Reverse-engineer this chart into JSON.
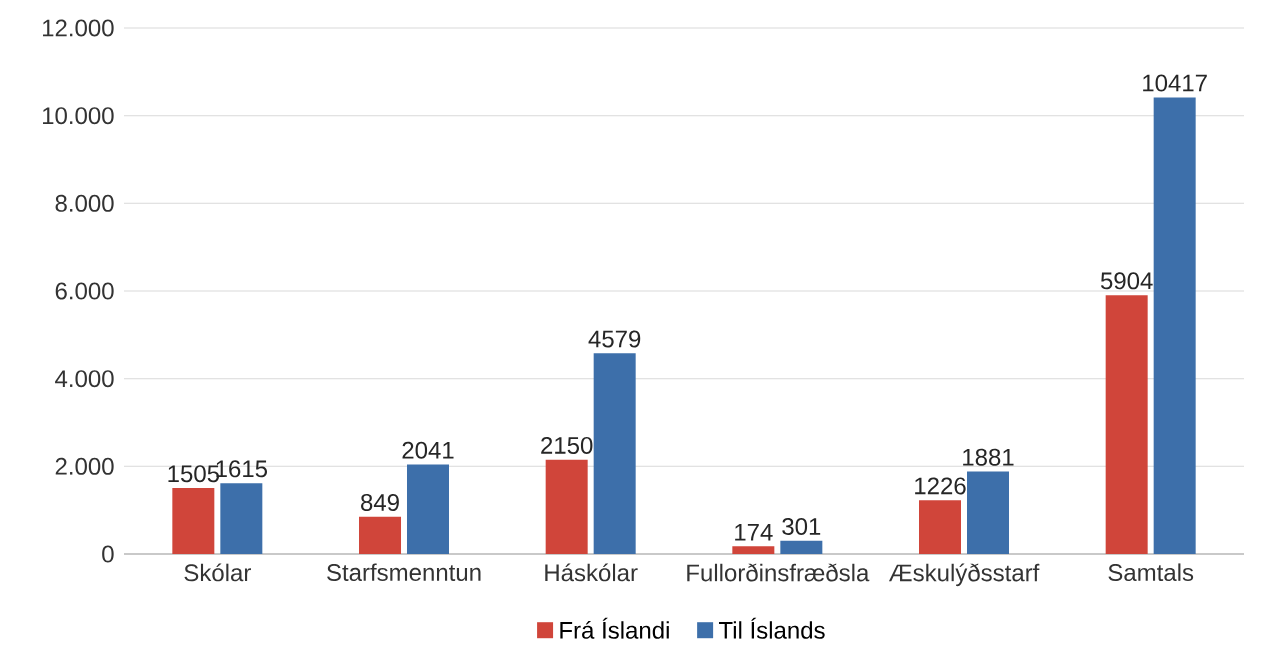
{
  "chart_data": {
    "type": "bar",
    "categories": [
      "Skólar",
      "Starfsmenntun",
      "Háskólar",
      "Fullorðinsfræðsla",
      "Æskulýðsstarf",
      "Samtals"
    ],
    "series": [
      {
        "name": "Frá Íslandi",
        "color": "#d0453a",
        "values": [
          1505,
          849,
          2150,
          174,
          1226,
          5904
        ]
      },
      {
        "name": "Til Íslands",
        "color": "#3d6faa",
        "values": [
          1615,
          2041,
          4579,
          301,
          1881,
          10417
        ]
      }
    ],
    "ylim": [
      0,
      12000
    ],
    "yticks": [
      0,
      {
        "value": 2000,
        "label": "2.000"
      },
      {
        "value": 4000,
        "label": "4.000"
      },
      {
        "value": 6000,
        "label": "6.000"
      },
      {
        "value": 8000,
        "label": "8.000"
      },
      {
        "value": 10000,
        "label": "10.000"
      },
      {
        "value": 12000,
        "label": "12.000"
      }
    ],
    "grid": "y",
    "legend": "bottom",
    "data_labels": true
  }
}
